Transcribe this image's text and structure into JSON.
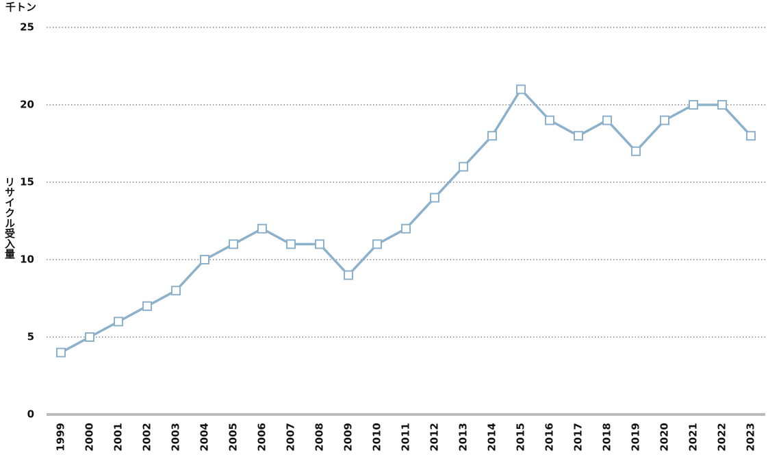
{
  "chart_data": {
    "type": "line",
    "y_unit_label": "千トン",
    "y_axis_label": "リサイクル受入量",
    "categories": [
      "1999",
      "2000",
      "2001",
      "2002",
      "2003",
      "2004",
      "2005",
      "2006",
      "2007",
      "2008",
      "2009",
      "2010",
      "2011",
      "2012",
      "2013",
      "2014",
      "2015",
      "2016",
      "2017",
      "2018",
      "2019",
      "2020",
      "2021",
      "2022",
      "2023"
    ],
    "values": [
      4,
      5,
      6,
      7,
      8,
      10,
      11,
      12,
      11,
      11,
      9,
      11,
      12,
      14,
      16,
      18,
      21,
      19,
      18,
      19,
      17,
      19,
      20,
      20,
      18
    ],
    "color": "#8db0cb",
    "ylim": [
      0,
      25
    ],
    "yticks": [
      0,
      5,
      10,
      15,
      20,
      25
    ],
    "grid": true
  }
}
